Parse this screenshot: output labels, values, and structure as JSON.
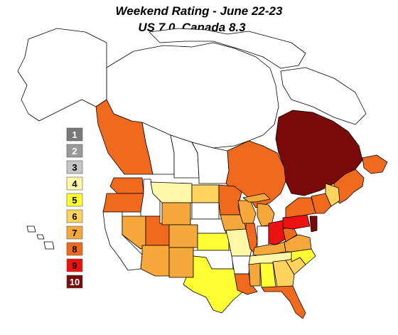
{
  "title": {
    "line1": "Weekend Rating - June 22-23",
    "line2": "US 7.0, Canada 8.3"
  },
  "legend": [
    {
      "label": "1",
      "color": "#7a7a7a",
      "text": "#ffffff"
    },
    {
      "label": "2",
      "color": "#9a9a9a",
      "text": "#ffffff"
    },
    {
      "label": "3",
      "color": "#c6c6c6",
      "text": "#000000"
    },
    {
      "label": "4",
      "color": "#fff8a8",
      "text": "#000000"
    },
    {
      "label": "5",
      "color": "#ffff33",
      "text": "#000000"
    },
    {
      "label": "6",
      "color": "#ffd35c",
      "text": "#000000"
    },
    {
      "label": "7",
      "color": "#f7a83a",
      "text": "#000000"
    },
    {
      "label": "8",
      "color": "#f06a1e",
      "text": "#000000"
    },
    {
      "label": "9",
      "color": "#ee1111",
      "text": "#000000"
    },
    {
      "label": "10",
      "color": "#7a0a0a",
      "text": "#ffffff"
    }
  ],
  "regions": [
    {
      "name": "british-columbia",
      "rating": 8
    },
    {
      "name": "alberta",
      "rating": null
    },
    {
      "name": "saskatchewan",
      "rating": null
    },
    {
      "name": "manitoba",
      "rating": null
    },
    {
      "name": "ontario",
      "rating": 8
    },
    {
      "name": "quebec",
      "rating": 10
    },
    {
      "name": "atlantic-canada",
      "rating": 8
    },
    {
      "name": "northern-canada",
      "rating": null
    },
    {
      "name": "alaska",
      "rating": null
    },
    {
      "name": "washington",
      "rating": 8
    },
    {
      "name": "oregon",
      "rating": 8
    },
    {
      "name": "california",
      "rating": null
    },
    {
      "name": "idaho",
      "rating": null
    },
    {
      "name": "nevada",
      "rating": 7
    },
    {
      "name": "utah",
      "rating": 8
    },
    {
      "name": "arizona",
      "rating": 7
    },
    {
      "name": "montana",
      "rating": 4
    },
    {
      "name": "wyoming",
      "rating": 7
    },
    {
      "name": "colorado",
      "rating": 7
    },
    {
      "name": "new-mexico",
      "rating": 7
    },
    {
      "name": "north-dakota",
      "rating": 6
    },
    {
      "name": "south-dakota",
      "rating": null
    },
    {
      "name": "nebraska",
      "rating": null
    },
    {
      "name": "kansas",
      "rating": 5
    },
    {
      "name": "oklahoma",
      "rating": null
    },
    {
      "name": "texas",
      "rating": 5
    },
    {
      "name": "minnesota",
      "rating": 8
    },
    {
      "name": "iowa",
      "rating": 7
    },
    {
      "name": "missouri",
      "rating": 4
    },
    {
      "name": "arkansas",
      "rating": null
    },
    {
      "name": "louisiana",
      "rating": 8
    },
    {
      "name": "wisconsin",
      "rating": 7
    },
    {
      "name": "illinois",
      "rating": 8
    },
    {
      "name": "michigan",
      "rating": 7
    },
    {
      "name": "indiana",
      "rating": null
    },
    {
      "name": "ohio",
      "rating": 9
    },
    {
      "name": "kentucky",
      "rating": 7
    },
    {
      "name": "tennessee",
      "rating": 4
    },
    {
      "name": "mississippi",
      "rating": 7
    },
    {
      "name": "alabama",
      "rating": 5
    },
    {
      "name": "georgia",
      "rating": 6
    },
    {
      "name": "florida",
      "rating": 8
    },
    {
      "name": "south-carolina",
      "rating": 6
    },
    {
      "name": "north-carolina",
      "rating": 5
    },
    {
      "name": "virginia",
      "rating": 7
    },
    {
      "name": "west-virginia",
      "rating": 8
    },
    {
      "name": "pennsylvania",
      "rating": 9
    },
    {
      "name": "new-york",
      "rating": 8
    },
    {
      "name": "new-jersey",
      "rating": 10
    },
    {
      "name": "new-england",
      "rating": 8
    },
    {
      "name": "maine",
      "rating": 6
    },
    {
      "name": "hawaii",
      "rating": null
    }
  ]
}
